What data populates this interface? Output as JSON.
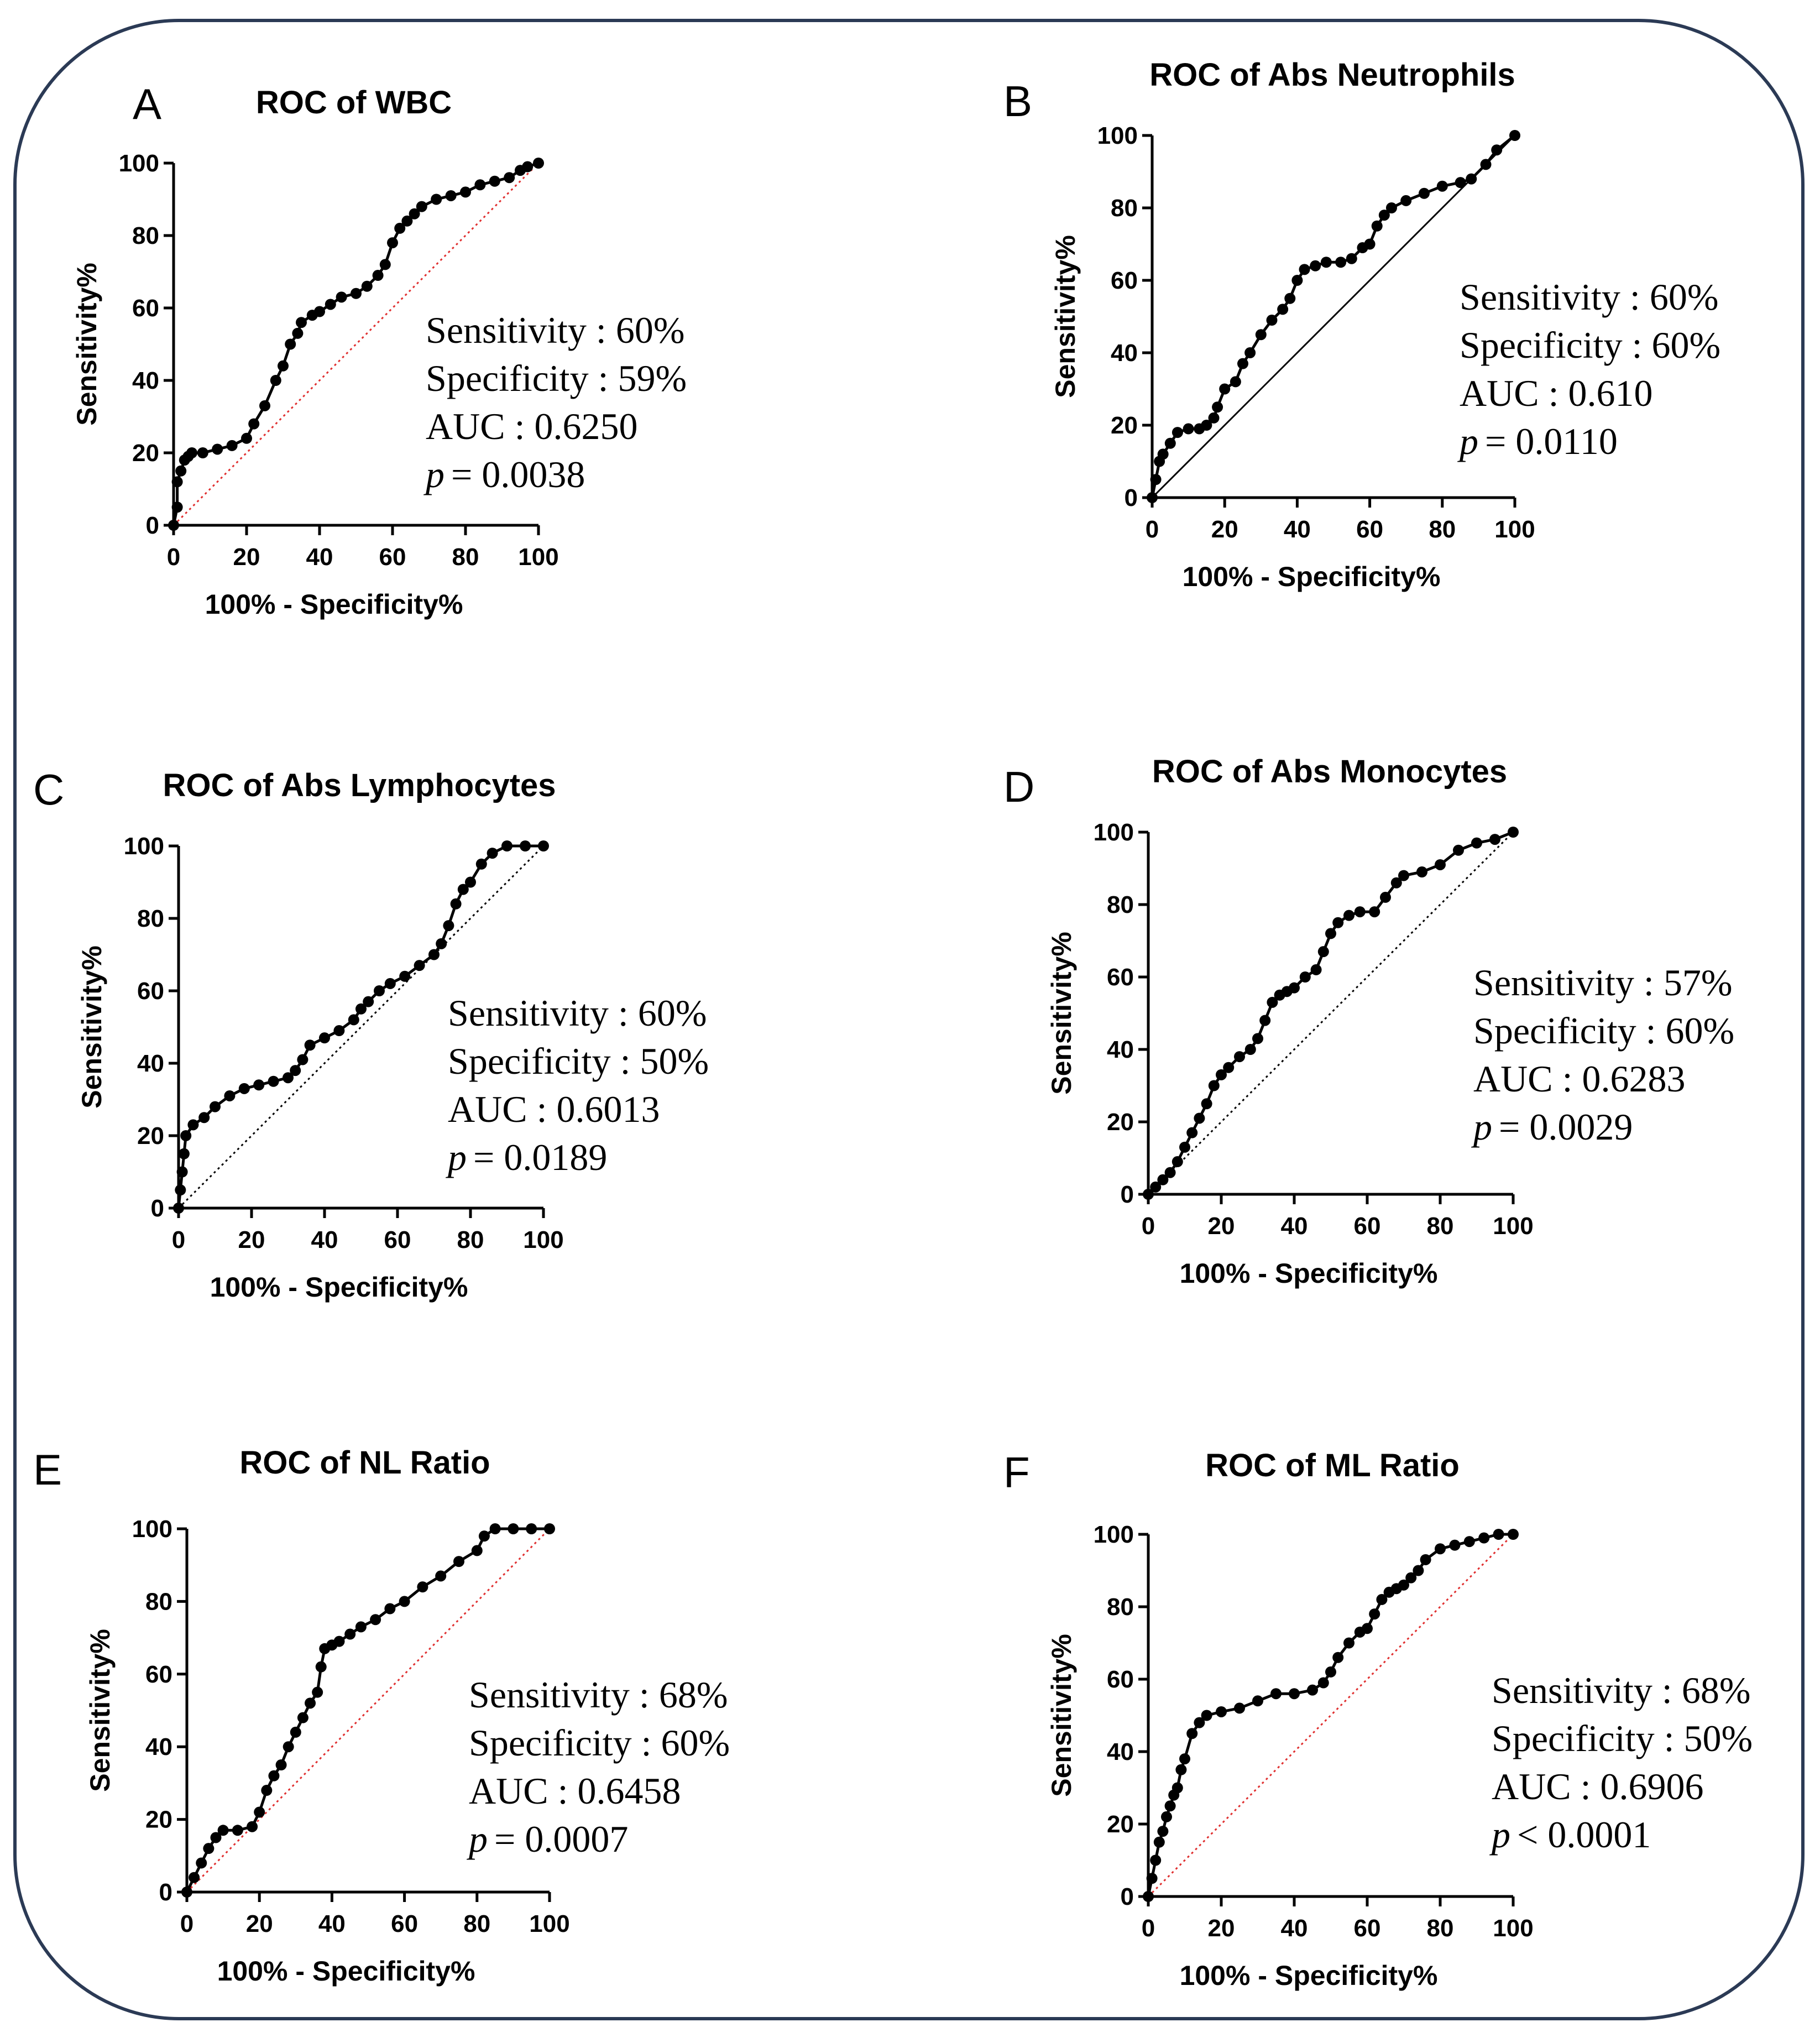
{
  "chart_data": [
    {
      "panel": "A",
      "type": "line",
      "title": "ROC of WBC",
      "xlabel": "100% - Specificity%",
      "ylabel": "Sensitivity%",
      "xlim": [
        0,
        100
      ],
      "ylim": [
        0,
        100
      ],
      "ticks": [
        "0",
        "20",
        "40",
        "60",
        "80",
        "100"
      ],
      "reference_color": "#e03030",
      "reference_style": "dotted",
      "stats": [
        "Sensitivity : 60%",
        "Specificity  : 59%",
        "AUC : 0.6250"
      ],
      "p_symbol": "p",
      "p_value": "= 0.0038",
      "series": [
        {
          "name": "ROC",
          "x": [
            0,
            1,
            1,
            2,
            3,
            4,
            5,
            8,
            12,
            16,
            20,
            22,
            25,
            28,
            30,
            32,
            34,
            35,
            38,
            40,
            43,
            46,
            50,
            53,
            56,
            58,
            60,
            62,
            64,
            66,
            68,
            72,
            76,
            80,
            84,
            88,
            92,
            95,
            97,
            100
          ],
          "y": [
            0,
            5,
            12,
            15,
            18,
            19,
            20,
            20,
            21,
            22,
            24,
            28,
            33,
            40,
            44,
            50,
            53,
            56,
            58,
            59,
            61,
            63,
            64,
            66,
            69,
            72,
            78,
            82,
            84,
            86,
            88,
            90,
            91,
            92,
            94,
            95,
            96,
            98,
            99,
            100
          ]
        }
      ]
    },
    {
      "panel": "B",
      "type": "line",
      "title": "ROC of Abs Neutrophils",
      "xlabel": "100% - Specificity%",
      "ylabel": "Sensitivity%",
      "xlim": [
        0,
        100
      ],
      "ylim": [
        0,
        100
      ],
      "ticks": [
        "0",
        "20",
        "40",
        "60",
        "80",
        "100"
      ],
      "reference_color": "#000000",
      "reference_style": "solid",
      "stats": [
        "Sensitivity : 60%",
        "Specificity   : 60%",
        "AUC : 0.610"
      ],
      "p_symbol": "p",
      "p_value": "= 0.0110",
      "series": [
        {
          "name": "ROC",
          "x": [
            0,
            1,
            2,
            3,
            5,
            7,
            10,
            13,
            15,
            17,
            18,
            20,
            23,
            25,
            27,
            30,
            33,
            36,
            38,
            40,
            42,
            45,
            48,
            52,
            55,
            58,
            60,
            62,
            64,
            66,
            70,
            75,
            80,
            85,
            88,
            92,
            95,
            100
          ],
          "y": [
            0,
            5,
            10,
            12,
            15,
            18,
            19,
            19,
            20,
            22,
            25,
            30,
            32,
            37,
            40,
            45,
            49,
            52,
            55,
            60,
            63,
            64,
            65,
            65,
            66,
            69,
            70,
            75,
            78,
            80,
            82,
            84,
            86,
            87,
            88,
            92,
            96,
            100
          ]
        }
      ]
    },
    {
      "panel": "C",
      "type": "line",
      "title": "ROC of Abs Lymphocytes",
      "xlabel": "100% - Specificity%",
      "ylabel": "Sensitivity%",
      "xlim": [
        0,
        100
      ],
      "ylim": [
        0,
        100
      ],
      "ticks": [
        "0",
        "20",
        "40",
        "60",
        "80",
        "100"
      ],
      "reference_color": "#000000",
      "reference_style": "dotted",
      "stats": [
        "Sensitivity : 60%",
        "Specificity   : 50%",
        "AUC : 0.6013"
      ],
      "p_symbol": "p",
      "p_value": "= 0.0189",
      "series": [
        {
          "name": "ROC",
          "x": [
            0,
            0.5,
            1,
            1.5,
            2,
            4,
            7,
            10,
            14,
            18,
            22,
            26,
            30,
            32,
            34,
            36,
            40,
            44,
            48,
            50,
            52,
            55,
            58,
            62,
            66,
            70,
            72,
            74,
            76,
            78,
            80,
            83,
            86,
            90,
            95,
            100
          ],
          "y": [
            0,
            5,
            10,
            15,
            20,
            23,
            25,
            28,
            31,
            33,
            34,
            35,
            36,
            38,
            41,
            45,
            47,
            49,
            52,
            55,
            57,
            60,
            62,
            64,
            67,
            70,
            73,
            78,
            84,
            88,
            90,
            95,
            98,
            100,
            100,
            100
          ]
        }
      ]
    },
    {
      "panel": "D",
      "type": "line",
      "title": "ROC of Abs Monocytes",
      "xlabel": "100% - Specificity%",
      "ylabel": "Sensitivity%",
      "xlim": [
        0,
        100
      ],
      "ylim": [
        0,
        100
      ],
      "ticks": [
        "0",
        "20",
        "40",
        "60",
        "80",
        "100"
      ],
      "reference_color": "#000000",
      "reference_style": "dotted",
      "stats": [
        "Sensitivity : 57%",
        "Specificity   : 60%",
        "AUC : 0.6283"
      ],
      "p_symbol": "p",
      "p_value": "= 0.0029",
      "series": [
        {
          "name": "ROC",
          "x": [
            0,
            2,
            4,
            6,
            8,
            10,
            12,
            14,
            16,
            18,
            20,
            22,
            25,
            28,
            30,
            32,
            34,
            36,
            38,
            40,
            43,
            46,
            48,
            50,
            52,
            55,
            58,
            62,
            65,
            68,
            70,
            75,
            80,
            85,
            90,
            95,
            100
          ],
          "y": [
            0,
            2,
            4,
            6,
            9,
            13,
            17,
            21,
            25,
            30,
            33,
            35,
            38,
            40,
            43,
            48,
            53,
            55,
            56,
            57,
            60,
            62,
            67,
            72,
            75,
            77,
            78,
            78,
            82,
            86,
            88,
            89,
            91,
            95,
            97,
            98,
            100
          ]
        }
      ]
    },
    {
      "panel": "E",
      "type": "line",
      "title": "ROC of NL Ratio",
      "xlabel": "100% - Specificity%",
      "ylabel": "Sensitivity%",
      "xlim": [
        0,
        100
      ],
      "ylim": [
        0,
        100
      ],
      "ticks": [
        "0",
        "20",
        "40",
        "60",
        "80",
        "100"
      ],
      "reference_color": "#e03030",
      "reference_style": "dotted",
      "stats": [
        "Sensitivity : 68%",
        "Specificity   : 60%",
        "AUC : 0.6458"
      ],
      "p_symbol": "p",
      "p_value": "= 0.0007",
      "series": [
        {
          "name": "ROC",
          "x": [
            0,
            2,
            4,
            6,
            8,
            10,
            14,
            18,
            20,
            22,
            24,
            26,
            28,
            30,
            32,
            34,
            36,
            37,
            38,
            40,
            42,
            45,
            48,
            52,
            56,
            60,
            65,
            70,
            75,
            80,
            82,
            85,
            90,
            95,
            100
          ],
          "y": [
            0,
            4,
            8,
            12,
            15,
            17,
            17,
            18,
            22,
            28,
            32,
            35,
            40,
            44,
            48,
            52,
            55,
            62,
            67,
            68,
            69,
            71,
            73,
            75,
            78,
            80,
            84,
            87,
            91,
            94,
            98,
            100,
            100,
            100,
            100
          ]
        }
      ]
    },
    {
      "panel": "F",
      "type": "line",
      "title": "ROC of ML Ratio",
      "xlabel": "100% - Specificity%",
      "ylabel": "Sensitivity%",
      "xlim": [
        0,
        100
      ],
      "ylim": [
        0,
        100
      ],
      "ticks": [
        "0",
        "20",
        "40",
        "60",
        "80",
        "100"
      ],
      "reference_color": "#e03030",
      "reference_style": "dotted",
      "stats": [
        "Sensitivity : 68%",
        "Specificity   : 50%",
        "AUC : 0.6906"
      ],
      "p_symbol": "p",
      "p_value": "< 0.0001",
      "series": [
        {
          "name": "ROC",
          "x": [
            0,
            1,
            2,
            3,
            4,
            5,
            6,
            7,
            8,
            9,
            10,
            12,
            14,
            16,
            20,
            25,
            30,
            35,
            40,
            45,
            48,
            50,
            52,
            55,
            58,
            60,
            62,
            64,
            66,
            68,
            70,
            72,
            74,
            76,
            80,
            84,
            88,
            92,
            96,
            100
          ],
          "y": [
            0,
            5,
            10,
            15,
            18,
            22,
            25,
            28,
            30,
            35,
            38,
            45,
            48,
            50,
            51,
            52,
            54,
            56,
            56,
            57,
            59,
            62,
            66,
            70,
            73,
            74,
            78,
            82,
            84,
            85,
            86,
            88,
            90,
            93,
            96,
            97,
            98,
            99,
            100,
            100
          ]
        }
      ]
    }
  ]
}
